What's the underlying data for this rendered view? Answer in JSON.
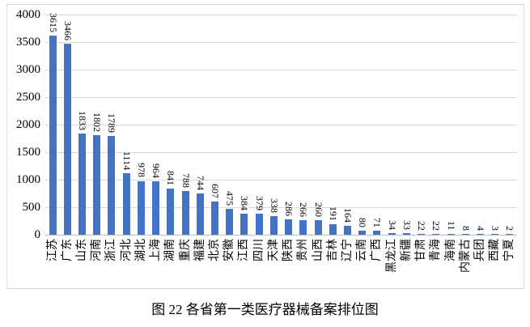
{
  "caption": "图 22 各省第一类医疗器械备案排位图",
  "colors": {
    "bar": "#4472C4",
    "gridline": "#D9D9D9",
    "axis_line": "#BFBFBF",
    "frame_border": "#D9D9D9",
    "text": "#000000",
    "background": "#FFFFFF"
  },
  "chart_data": {
    "type": "bar",
    "title": "",
    "xlabel": "",
    "ylabel": "",
    "categories": [
      "江苏",
      "广东",
      "山东",
      "河南",
      "浙江",
      "河北",
      "湖北",
      "上海",
      "湖南",
      "重庆",
      "福建",
      "北京",
      "安徽",
      "江西",
      "四川",
      "天津",
      "陕西",
      "贵州",
      "山西",
      "吉林",
      "辽宁",
      "云南",
      "广西",
      "黑龙江",
      "新疆",
      "甘肃",
      "青海",
      "海南",
      "内蒙古",
      "兵团",
      "西藏",
      "宁夏"
    ],
    "values": [
      3615,
      3466,
      1833,
      1802,
      1789,
      1114,
      978,
      964,
      841,
      788,
      744,
      607,
      475,
      384,
      379,
      338,
      286,
      266,
      260,
      191,
      164,
      80,
      71,
      34,
      33,
      22,
      22,
      11,
      8,
      4,
      3,
      2
    ],
    "ylim": [
      0,
      4000
    ],
    "yticks": [
      0,
      500,
      1000,
      1500,
      2000,
      2500,
      3000,
      3500,
      4000
    ],
    "grid": true,
    "legend": "none",
    "data_label_rotation": "90deg-read-downward",
    "category_label_rotation": "-90deg-read-upward"
  }
}
